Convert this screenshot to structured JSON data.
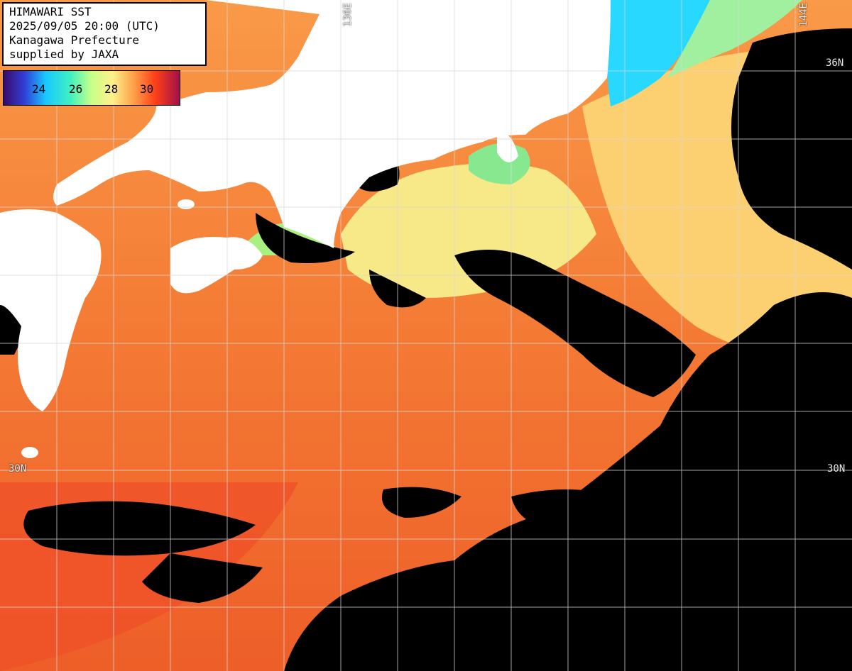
{
  "header": {
    "line1": "HIMAWARI SST",
    "line2": "2025/09/05 20:00 (UTC)",
    "line3": "Kanagawa Prefecture",
    "line4": "supplied by JAXA"
  },
  "legend": {
    "ticks": [
      "24",
      "26",
      "28",
      "30"
    ],
    "colors": [
      "#3a0a6a",
      "#1a6cff",
      "#18e6ff",
      "#9affa0",
      "#fff08a",
      "#ffb050",
      "#ff5018",
      "#e0103a",
      "#a0104a"
    ]
  },
  "grid": {
    "lat_labels": {
      "n36_right": "36N",
      "n30_left": "30N",
      "n30_right": "30N"
    },
    "lon_labels": {
      "e136": "136E",
      "e144": "144E"
    }
  },
  "colors": {
    "land": "#ffffff",
    "cloud_nodata": "#000000",
    "warm_sea": "#f7823a",
    "hot_sea": "#f05a2a",
    "cool_sea": "#fcd878",
    "cold_sea": "#9ef08a",
    "coldest_sea": "#28d8ff",
    "grid_line": "#d8d8d8"
  }
}
